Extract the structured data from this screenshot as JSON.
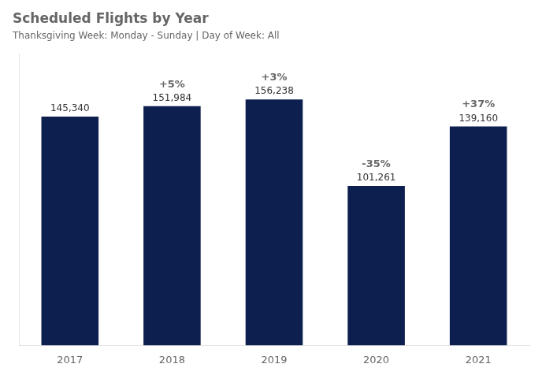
{
  "chart_data": {
    "type": "bar",
    "title": "Scheduled Flights by Year",
    "subtitle": "Thanksgiving Week: Monday - Sunday | Day of Week: All",
    "categories": [
      "2017",
      "2018",
      "2019",
      "2020",
      "2021"
    ],
    "values": [
      145340,
      151984,
      156238,
      101261,
      139160
    ],
    "value_labels": [
      "145,340",
      "151,984",
      "156,238",
      "101,261",
      "139,160"
    ],
    "annotations": [
      null,
      "+5%",
      "+3%",
      "-35%",
      "+37%"
    ],
    "color": "#0d1f4e",
    "ylim": [
      0,
      185000
    ],
    "data_labels": true,
    "tick_labels": "x",
    "grid": false
  }
}
